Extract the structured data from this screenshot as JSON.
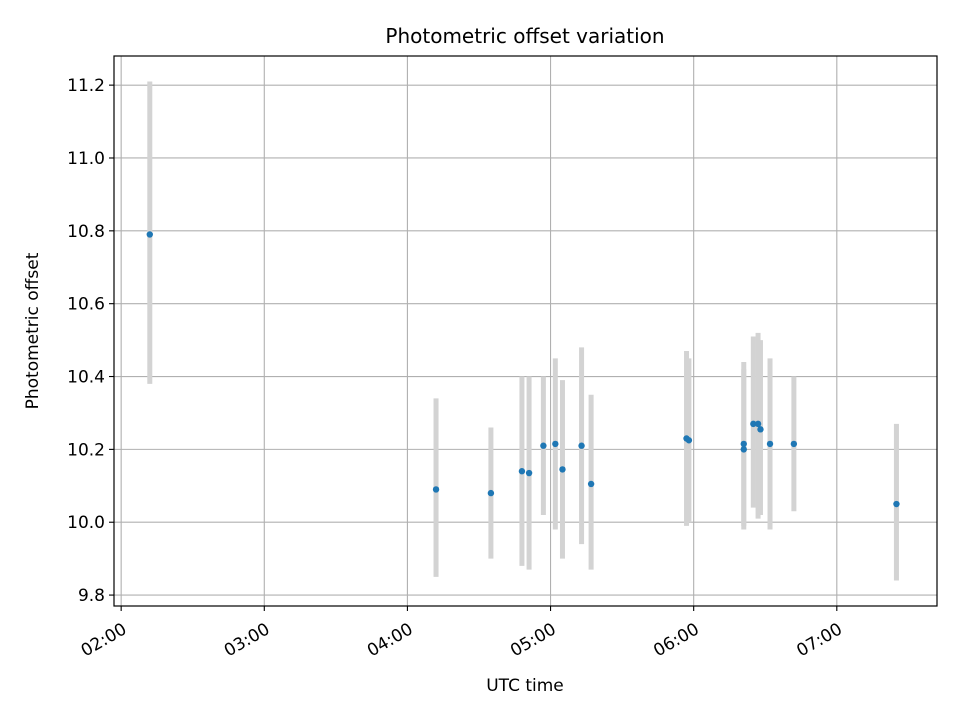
{
  "chart_data": {
    "type": "scatter",
    "title": "Photometric offset variation",
    "xlabel": "UTC time",
    "ylabel": "Photometric offset",
    "xlim": [
      "01:57",
      "07:42"
    ],
    "ylim": [
      9.77,
      11.28
    ],
    "x_ticks": [
      "02:00",
      "03:00",
      "04:00",
      "05:00",
      "06:00",
      "07:00"
    ],
    "y_ticks": [
      9.8,
      10.0,
      10.2,
      10.4,
      10.6,
      10.8,
      11.0,
      11.2
    ],
    "grid": true,
    "colors": {
      "point": "#1f77b4",
      "errorbar": "#d3d3d3",
      "grid": "#b0b0b0"
    },
    "points": [
      {
        "x": "02:12",
        "y": 10.79,
        "y_low": 10.38,
        "y_high": 11.21
      },
      {
        "x": "04:12",
        "y": 10.09,
        "y_low": 9.85,
        "y_high": 10.34
      },
      {
        "x": "04:35",
        "y": 10.08,
        "y_low": 9.9,
        "y_high": 10.26
      },
      {
        "x": "04:48",
        "y": 10.14,
        "y_low": 9.88,
        "y_high": 10.4
      },
      {
        "x": "04:51",
        "y": 10.135,
        "y_low": 9.87,
        "y_high": 10.4
      },
      {
        "x": "04:57",
        "y": 10.21,
        "y_low": 10.02,
        "y_high": 10.4
      },
      {
        "x": "05:02",
        "y": 10.215,
        "y_low": 9.98,
        "y_high": 10.45
      },
      {
        "x": "05:05",
        "y": 10.145,
        "y_low": 9.9,
        "y_high": 10.39
      },
      {
        "x": "05:13",
        "y": 10.21,
        "y_low": 9.94,
        "y_high": 10.48
      },
      {
        "x": "05:17",
        "y": 10.105,
        "y_low": 9.87,
        "y_high": 10.35
      },
      {
        "x": "05:57",
        "y": 10.23,
        "y_low": 9.99,
        "y_high": 10.47
      },
      {
        "x": "05:58",
        "y": 10.225,
        "y_low": 10.0,
        "y_high": 10.45
      },
      {
        "x": "06:21",
        "y": 10.215,
        "y_low": 9.99,
        "y_high": 10.44
      },
      {
        "x": "06:21",
        "y": 10.2,
        "y_low": 9.98,
        "y_high": 10.42
      },
      {
        "x": "06:25",
        "y": 10.27,
        "y_low": 10.04,
        "y_high": 10.51
      },
      {
        "x": "06:27",
        "y": 10.27,
        "y_low": 10.01,
        "y_high": 10.52
      },
      {
        "x": "06:28",
        "y": 10.255,
        "y_low": 10.02,
        "y_high": 10.5
      },
      {
        "x": "06:32",
        "y": 10.215,
        "y_low": 9.98,
        "y_high": 10.45
      },
      {
        "x": "06:42",
        "y": 10.215,
        "y_low": 10.03,
        "y_high": 10.4
      },
      {
        "x": "07:25",
        "y": 10.05,
        "y_low": 9.84,
        "y_high": 10.27
      }
    ]
  }
}
